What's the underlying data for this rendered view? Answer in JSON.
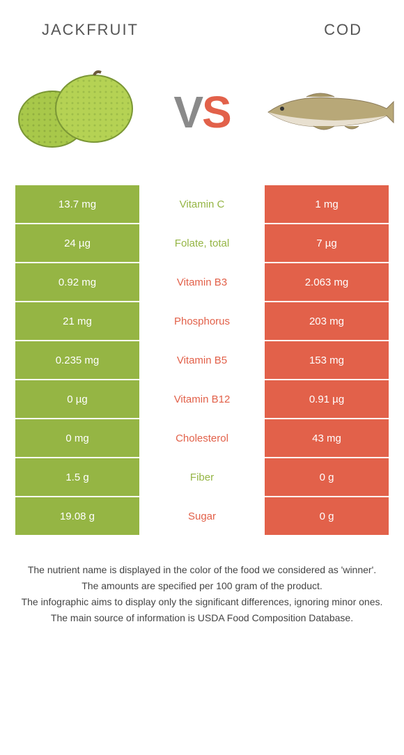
{
  "header": {
    "left_title": "Jackfruit",
    "right_title": "Cod"
  },
  "vs": {
    "v": "V",
    "s": "S"
  },
  "colors": {
    "left_bg": "#95b544",
    "right_bg": "#e2614a",
    "left_text_winner": "#95b544",
    "right_text_winner": "#e2614a"
  },
  "rows": [
    {
      "left": "13.7 mg",
      "label": "Vitamin C",
      "right": "1 mg",
      "winner": "left"
    },
    {
      "left": "24 µg",
      "label": "Folate, total",
      "right": "7 µg",
      "winner": "left"
    },
    {
      "left": "0.92 mg",
      "label": "Vitamin B3",
      "right": "2.063 mg",
      "winner": "right"
    },
    {
      "left": "21 mg",
      "label": "Phosphorus",
      "right": "203 mg",
      "winner": "right"
    },
    {
      "left": "0.235 mg",
      "label": "Vitamin B5",
      "right": "153 mg",
      "winner": "right"
    },
    {
      "left": "0 µg",
      "label": "Vitamin B12",
      "right": "0.91 µg",
      "winner": "right"
    },
    {
      "left": "0 mg",
      "label": "Cholesterol",
      "right": "43 mg",
      "winner": "right"
    },
    {
      "left": "1.5 g",
      "label": "Fiber",
      "right": "0 g",
      "winner": "left"
    },
    {
      "left": "19.08 g",
      "label": "Sugar",
      "right": "0 g",
      "winner": "right"
    }
  ],
  "footer": {
    "line1": "The nutrient name is displayed in the color of the food we considered as 'winner'.",
    "line2": "The amounts are specified per 100 gram of the product.",
    "line3": "The infographic aims to display only the significant differences, ignoring minor ones.",
    "line4": "The main source of information is USDA Food Composition Database."
  }
}
